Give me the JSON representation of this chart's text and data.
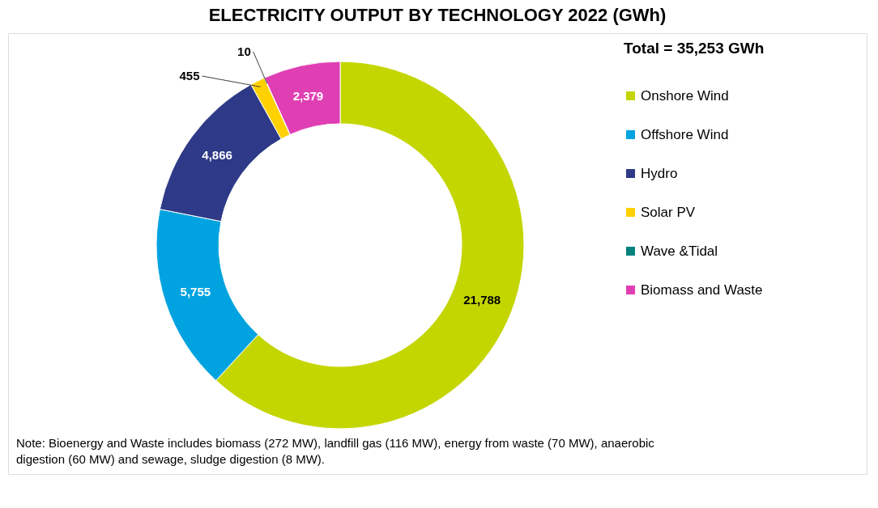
{
  "chart_data": {
    "type": "donut",
    "title": "ELECTRICITY OUTPUT BY TECHNOLOGY 2022 (GWh)",
    "legend_title": "Total = 35,253 GWh",
    "categories": [
      "Onshore Wind",
      "Offshore Wind",
      "Hydro",
      "Solar PV",
      "Wave &Tidal",
      "Biomass and Waste"
    ],
    "values": [
      21788,
      5755,
      4866,
      455,
      10,
      2379
    ],
    "colors": [
      "#c4d600",
      "#00a3e0",
      "#2e3a87",
      "#ffd100",
      "#00827f",
      "#e03fb4"
    ],
    "value_labels": [
      "21,788",
      "5,755",
      "4,866",
      "455",
      "10",
      "2,379"
    ],
    "legend": "right",
    "annotations": [
      "Note: Bioenergy and Waste includes biomass (272 MW), landfill gas (116 MW), energy from waste (70 MW), anaerobic digestion (60 MW) and sewage, sludge digestion (8 MW)."
    ]
  }
}
